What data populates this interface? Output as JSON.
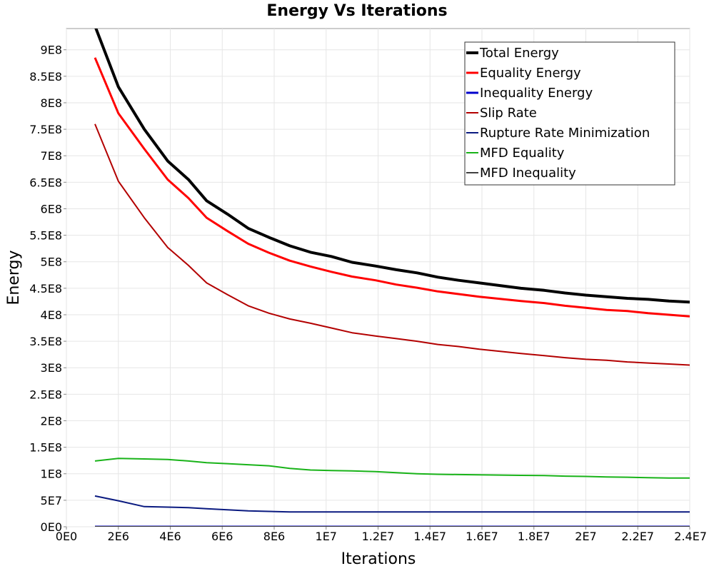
{
  "chart_data": {
    "type": "line",
    "title": "Energy Vs Iterations",
    "xlabel": "Iterations",
    "ylabel": "Energy",
    "xlim": [
      0,
      24000000
    ],
    "ylim": [
      0,
      940000000
    ],
    "grid": true,
    "legend_position": "top-right",
    "x_ticks": [
      {
        "value": 0,
        "label": "0E0"
      },
      {
        "value": 2000000,
        "label": "2E6"
      },
      {
        "value": 4000000,
        "label": "4E6"
      },
      {
        "value": 6000000,
        "label": "6E6"
      },
      {
        "value": 8000000,
        "label": "8E6"
      },
      {
        "value": 10000000,
        "label": "1E7"
      },
      {
        "value": 12000000,
        "label": "1.2E7"
      },
      {
        "value": 14000000,
        "label": "1.4E7"
      },
      {
        "value": 16000000,
        "label": "1.6E7"
      },
      {
        "value": 18000000,
        "label": "1.8E7"
      },
      {
        "value": 20000000,
        "label": "2E7"
      },
      {
        "value": 22000000,
        "label": "2.2E7"
      },
      {
        "value": 24000000,
        "label": "2.4E7"
      }
    ],
    "y_ticks": [
      {
        "value": 0,
        "label": "0E0"
      },
      {
        "value": 50000000,
        "label": "5E7"
      },
      {
        "value": 100000000,
        "label": "1E8"
      },
      {
        "value": 150000000,
        "label": "1.5E8"
      },
      {
        "value": 200000000,
        "label": "2E8"
      },
      {
        "value": 250000000,
        "label": "2.5E8"
      },
      {
        "value": 300000000,
        "label": "3E8"
      },
      {
        "value": 350000000,
        "label": "3.5E8"
      },
      {
        "value": 400000000,
        "label": "4E8"
      },
      {
        "value": 450000000,
        "label": "4.5E8"
      },
      {
        "value": 500000000,
        "label": "5E8"
      },
      {
        "value": 550000000,
        "label": "5.5E8"
      },
      {
        "value": 600000000,
        "label": "6E8"
      },
      {
        "value": 650000000,
        "label": "6.5E8"
      },
      {
        "value": 700000000,
        "label": "7E8"
      },
      {
        "value": 750000000,
        "label": "7.5E8"
      },
      {
        "value": 800000000,
        "label": "8E8"
      },
      {
        "value": 850000000,
        "label": "8.5E8"
      },
      {
        "value": 900000000,
        "label": "9E8"
      }
    ],
    "x": [
      1100000,
      2000000,
      3000000,
      3900000,
      4700000,
      5400000,
      6200000,
      7000000,
      7800000,
      8600000,
      9400000,
      10200000,
      11000000,
      11900000,
      12700000,
      13500000,
      14300000,
      15100000,
      15900000,
      16700000,
      17500000,
      18400000,
      19200000,
      20000000,
      20800000,
      21600000,
      22400000,
      23200000,
      24000000
    ],
    "series": [
      {
        "name": "Total Energy",
        "color": "#000000",
        "width": 4,
        "values": [
          945000000,
          830000000,
          750000000,
          690000000,
          655000000,
          615000000,
          590000000,
          563000000,
          546000000,
          530000000,
          518000000,
          510000000,
          499000000,
          492000000,
          485000000,
          479000000,
          471000000,
          465000000,
          460000000,
          455000000,
          450000000,
          446000000,
          441000000,
          437000000,
          434000000,
          431000000,
          429000000,
          426000000,
          424000000
        ]
      },
      {
        "name": "Equality Energy",
        "color": "#ff0000",
        "width": 3,
        "values": [
          885000000,
          780000000,
          713000000,
          655000000,
          620000000,
          583000000,
          558000000,
          534000000,
          517000000,
          502000000,
          491000000,
          481000000,
          472000000,
          465000000,
          457000000,
          451000000,
          444000000,
          439000000,
          434000000,
          430000000,
          426000000,
          422000000,
          417000000,
          413000000,
          409000000,
          407000000,
          403000000,
          400000000,
          397000000
        ]
      },
      {
        "name": "Inequality Energy",
        "color": "#0000cc",
        "width": 3,
        "values": [
          0,
          0,
          0,
          0,
          0,
          0,
          0,
          0,
          0,
          0,
          0,
          0,
          0,
          0,
          0,
          0,
          0,
          0,
          0,
          0,
          0,
          0,
          0,
          0,
          0,
          0,
          0,
          0,
          0
        ]
      },
      {
        "name": "Slip Rate",
        "color": "#b30000",
        "width": 2,
        "values": [
          760000000,
          652000000,
          583000000,
          527000000,
          493000000,
          460000000,
          438000000,
          417000000,
          403000000,
          392000000,
          384000000,
          375000000,
          366000000,
          360000000,
          355000000,
          350000000,
          344000000,
          340000000,
          335000000,
          331000000,
          327000000,
          323000000,
          319000000,
          316000000,
          314000000,
          311000000,
          309000000,
          307000000,
          305000000
        ]
      },
      {
        "name": "Rupture Rate Minimization",
        "color": "#0a1a80",
        "width": 2,
        "values": [
          58000000,
          49000000,
          38000000,
          37000000,
          36000000,
          34000000,
          32000000,
          30000000,
          29000000,
          28000000,
          28000000,
          28000000,
          28000000,
          28000000,
          28000000,
          28000000,
          28000000,
          28000000,
          28000000,
          28000000,
          28000000,
          28000000,
          28000000,
          28000000,
          28000000,
          28000000,
          28000000,
          28000000,
          28000000
        ]
      },
      {
        "name": "MFD Equality",
        "color": "#19b319",
        "width": 2,
        "values": [
          124000000,
          129000000,
          128000000,
          127000000,
          124000000,
          121000000,
          119000000,
          117000000,
          115000000,
          110000000,
          107000000,
          106000000,
          105500000,
          104000000,
          102000000,
          100000000,
          99000000,
          98500000,
          98000000,
          97500000,
          97000000,
          96500000,
          95500000,
          95000000,
          94000000,
          93500000,
          92500000,
          92000000,
          92000000
        ]
      },
      {
        "name": "MFD Inequality",
        "color": "#404040",
        "width": 2,
        "values": [
          0,
          0,
          0,
          0,
          0,
          0,
          0,
          0,
          0,
          0,
          0,
          0,
          0,
          0,
          0,
          0,
          0,
          0,
          0,
          0,
          0,
          0,
          0,
          0,
          0,
          0,
          0,
          0,
          0
        ]
      }
    ]
  }
}
